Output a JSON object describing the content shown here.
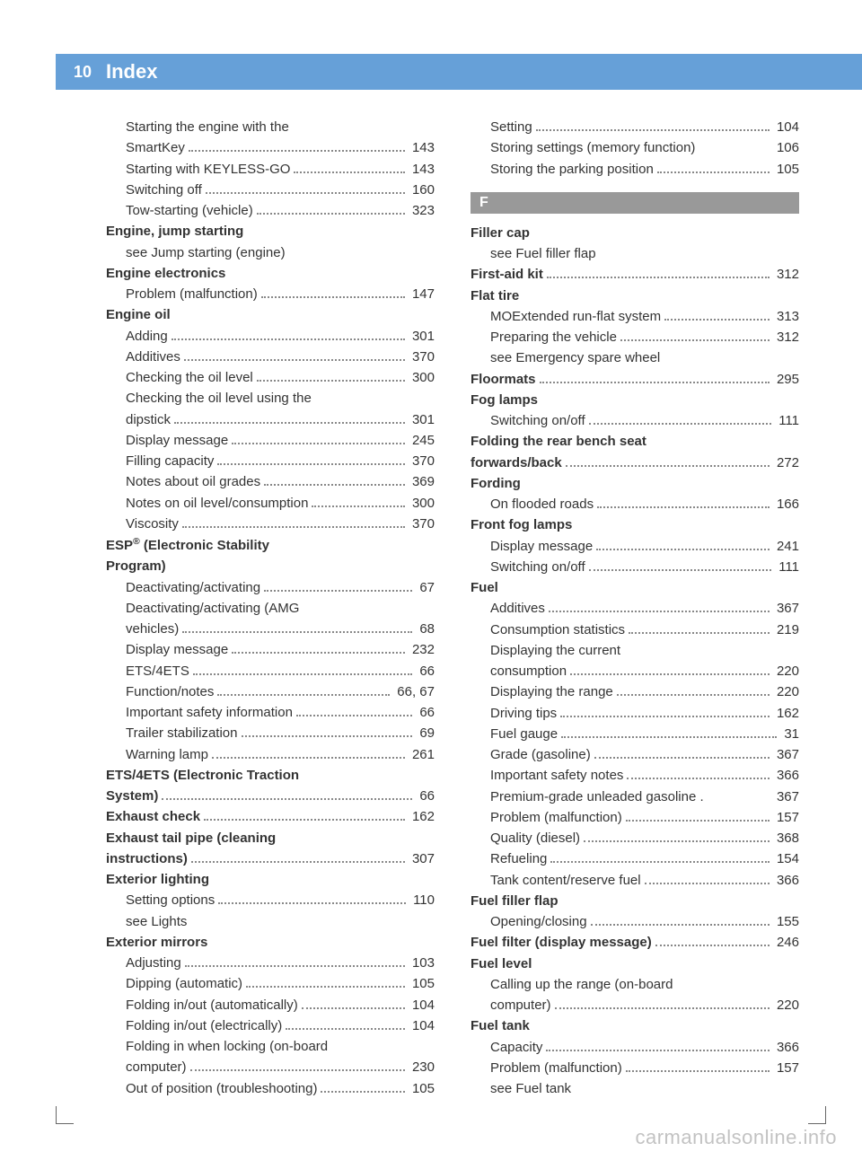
{
  "page_number": "10",
  "section": "Index",
  "watermark": "carmanualsonline.info",
  "letter_header": "F",
  "columns": {
    "left": [
      {
        "t": "sub",
        "label": "Starting the engine with the"
      },
      {
        "t": "sub",
        "label": "SmartKey",
        "pg": "143"
      },
      {
        "t": "sub",
        "label": "Starting with KEYLESS-GO",
        "pg": "143"
      },
      {
        "t": "sub",
        "label": "Switching off",
        "pg": "160"
      },
      {
        "t": "sub",
        "label": "Tow-starting (vehicle)",
        "pg": "323"
      },
      {
        "t": "head",
        "label": "Engine, jump starting"
      },
      {
        "t": "sub",
        "label": "see Jump starting (engine)"
      },
      {
        "t": "head",
        "label": "Engine electronics"
      },
      {
        "t": "sub",
        "label": "Problem (malfunction)",
        "pg": "147"
      },
      {
        "t": "head",
        "label": "Engine oil"
      },
      {
        "t": "sub",
        "label": "Adding",
        "pg": "301"
      },
      {
        "t": "sub",
        "label": "Additives",
        "pg": "370"
      },
      {
        "t": "sub",
        "label": "Checking the oil level",
        "pg": "300"
      },
      {
        "t": "sub",
        "label": "Checking the oil level using the"
      },
      {
        "t": "sub",
        "label": "dipstick",
        "pg": "301"
      },
      {
        "t": "sub",
        "label": "Display message",
        "pg": "245"
      },
      {
        "t": "sub",
        "label": "Filling capacity",
        "pg": "370"
      },
      {
        "t": "sub",
        "label": "Notes about oil grades",
        "pg": "369"
      },
      {
        "t": "sub",
        "label": "Notes on oil level/consumption",
        "pg": "300"
      },
      {
        "t": "sub",
        "label": "Viscosity",
        "pg": "370"
      },
      {
        "t": "head",
        "label": "ESP® (Electronic Stability",
        "sup": true
      },
      {
        "t": "head",
        "label": "Program)"
      },
      {
        "t": "sub",
        "label": "Deactivating/activating",
        "pg": "67"
      },
      {
        "t": "sub",
        "label": "Deactivating/activating (AMG"
      },
      {
        "t": "sub",
        "label": "vehicles)",
        "pg": "68"
      },
      {
        "t": "sub",
        "label": "Display message",
        "pg": "232"
      },
      {
        "t": "sub",
        "label": "ETS/4ETS",
        "pg": "66"
      },
      {
        "t": "sub",
        "label": "Function/notes",
        "pg": "66, 67"
      },
      {
        "t": "sub",
        "label": "Important safety information",
        "pg": "66"
      },
      {
        "t": "sub",
        "label": "Trailer stabilization",
        "pg": "69"
      },
      {
        "t": "sub",
        "label": "Warning lamp",
        "pg": "261"
      },
      {
        "t": "head",
        "label": "ETS/4ETS (Electronic Traction"
      },
      {
        "t": "headpg",
        "label": "System)",
        "pg": "66"
      },
      {
        "t": "headpg",
        "label": "Exhaust check",
        "pg": "162"
      },
      {
        "t": "head",
        "label": "Exhaust tail pipe (cleaning"
      },
      {
        "t": "headpg",
        "label": "instructions)",
        "pg": "307"
      },
      {
        "t": "head",
        "label": "Exterior lighting"
      },
      {
        "t": "sub",
        "label": "Setting options",
        "pg": "110"
      },
      {
        "t": "sub",
        "label": "see Lights"
      },
      {
        "t": "head",
        "label": "Exterior mirrors"
      },
      {
        "t": "sub",
        "label": "Adjusting",
        "pg": "103"
      },
      {
        "t": "sub",
        "label": "Dipping (automatic)",
        "pg": "105"
      },
      {
        "t": "sub",
        "label": "Folding in/out (automatically)",
        "pg": "104"
      },
      {
        "t": "sub",
        "label": "Folding in/out (electrically)",
        "pg": "104"
      },
      {
        "t": "sub",
        "label": "Folding in when locking (on-board"
      },
      {
        "t": "sub",
        "label": "computer)",
        "pg": "230"
      },
      {
        "t": "sub",
        "label": "Out of position (troubleshooting)",
        "pg": "105"
      }
    ],
    "right": [
      {
        "t": "sub",
        "label": "Setting",
        "pg": "104"
      },
      {
        "t": "sub",
        "label": "Storing settings (memory function)",
        "pg": "106",
        "nodots": true
      },
      {
        "t": "sub",
        "label": "Storing the parking position",
        "pg": "105"
      },
      {
        "t": "letter"
      },
      {
        "t": "head",
        "label": "Filler cap"
      },
      {
        "t": "sub",
        "label": "see Fuel filler flap"
      },
      {
        "t": "headpg",
        "label": "First-aid kit",
        "pg": "312"
      },
      {
        "t": "head",
        "label": "Flat tire"
      },
      {
        "t": "sub",
        "label": "MOExtended run-flat system",
        "pg": "313"
      },
      {
        "t": "sub",
        "label": "Preparing the vehicle",
        "pg": "312"
      },
      {
        "t": "sub",
        "label": "see Emergency spare wheel"
      },
      {
        "t": "headpg",
        "label": "Floormats",
        "pg": "295"
      },
      {
        "t": "head",
        "label": "Fog lamps"
      },
      {
        "t": "sub",
        "label": "Switching on/off",
        "pg": "111"
      },
      {
        "t": "head",
        "label": "Folding the rear bench seat"
      },
      {
        "t": "headpg",
        "label": "forwards/back",
        "pg": "272"
      },
      {
        "t": "head",
        "label": "Fording"
      },
      {
        "t": "sub",
        "label": "On flooded roads",
        "pg": "166"
      },
      {
        "t": "head",
        "label": "Front fog lamps"
      },
      {
        "t": "sub",
        "label": "Display message",
        "pg": "241"
      },
      {
        "t": "sub",
        "label": "Switching on/off",
        "pg": "111"
      },
      {
        "t": "head",
        "label": "Fuel"
      },
      {
        "t": "sub",
        "label": "Additives",
        "pg": "367"
      },
      {
        "t": "sub",
        "label": "Consumption statistics",
        "pg": "219"
      },
      {
        "t": "sub",
        "label": "Displaying the current"
      },
      {
        "t": "sub",
        "label": "consumption",
        "pg": "220"
      },
      {
        "t": "sub",
        "label": "Displaying the range",
        "pg": "220"
      },
      {
        "t": "sub",
        "label": "Driving tips",
        "pg": "162"
      },
      {
        "t": "sub",
        "label": "Fuel gauge",
        "pg": "31"
      },
      {
        "t": "sub",
        "label": "Grade (gasoline)",
        "pg": "367"
      },
      {
        "t": "sub",
        "label": "Important safety notes",
        "pg": "366"
      },
      {
        "t": "sub",
        "label": "Premium-grade unleaded gasoline .",
        "pg": "367",
        "nodots": true
      },
      {
        "t": "sub",
        "label": "Problem (malfunction)",
        "pg": "157"
      },
      {
        "t": "sub",
        "label": "Quality (diesel)",
        "pg": "368"
      },
      {
        "t": "sub",
        "label": "Refueling",
        "pg": "154"
      },
      {
        "t": "sub",
        "label": "Tank content/reserve fuel",
        "pg": "366"
      },
      {
        "t": "head",
        "label": "Fuel filler flap"
      },
      {
        "t": "sub",
        "label": "Opening/closing",
        "pg": "155"
      },
      {
        "t": "headpg",
        "label": "Fuel filter (display message)",
        "pg": "246"
      },
      {
        "t": "head",
        "label": "Fuel level"
      },
      {
        "t": "sub",
        "label": "Calling up the range (on-board"
      },
      {
        "t": "sub",
        "label": "computer)",
        "pg": "220"
      },
      {
        "t": "head",
        "label": "Fuel tank"
      },
      {
        "t": "sub",
        "label": "Capacity",
        "pg": "366"
      },
      {
        "t": "sub",
        "label": "Problem (malfunction)",
        "pg": "157"
      },
      {
        "t": "sub",
        "label": "see Fuel tank"
      }
    ]
  }
}
